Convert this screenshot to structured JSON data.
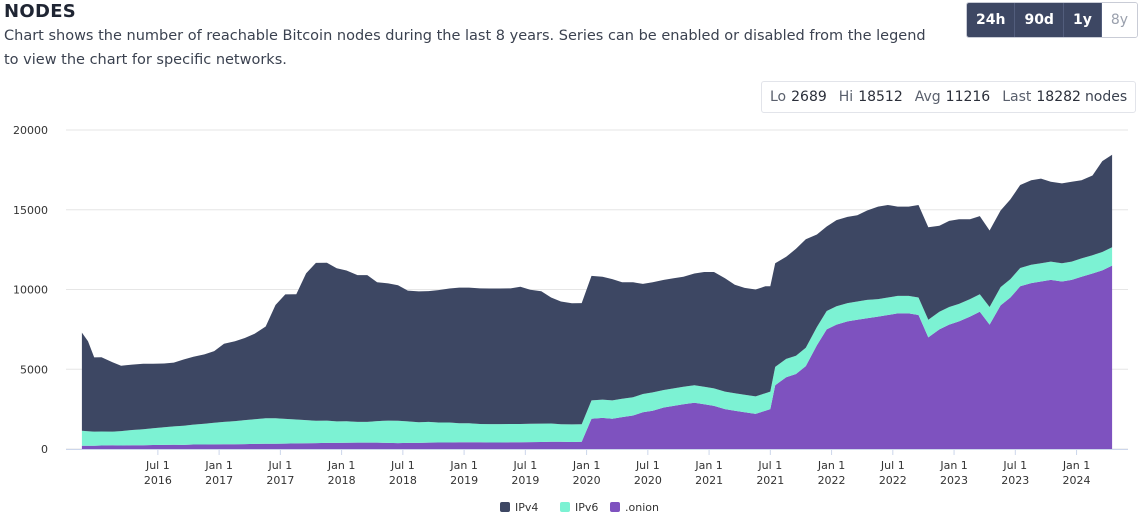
{
  "header": {
    "title": "NODES",
    "subtitle": "Chart shows the number of reachable Bitcoin nodes during the last 8 years. Series can be enabled or disabled from the legend to view the chart for specific networks."
  },
  "range_buttons": [
    {
      "label": "24h",
      "active": false
    },
    {
      "label": "90d",
      "active": false
    },
    {
      "label": "1y",
      "active": false
    },
    {
      "label": "8y",
      "active": true
    }
  ],
  "stats": {
    "lo_label": "Lo",
    "lo_value": "2689",
    "hi_label": "Hi",
    "hi_value": "18512",
    "avg_label": "Avg",
    "avg_value": "11216",
    "last_label": "Last",
    "last_value": "18282",
    "unit": "nodes"
  },
  "colors": {
    "ipv4": "#3d4763",
    "ipv6": "#7cf2d3",
    "onion": "#7e52bf",
    "grid": "#e6e6e6",
    "axis_text": "#333333"
  },
  "chart_data": {
    "type": "area",
    "stacked": true,
    "title": "NODES",
    "xlabel": "",
    "ylabel": "",
    "ylim": [
      0,
      20000
    ],
    "y_ticks": [
      "0",
      "5000",
      "10000",
      "15000",
      "20000"
    ],
    "x_ticks": [
      {
        "date": 2016.5,
        "line1": "Jul 1",
        "line2": "2016"
      },
      {
        "date": 2017.0,
        "line1": "Jan 1",
        "line2": "2017"
      },
      {
        "date": 2017.5,
        "line1": "Jul 1",
        "line2": "2017"
      },
      {
        "date": 2018.0,
        "line1": "Jan 1",
        "line2": "2018"
      },
      {
        "date": 2018.5,
        "line1": "Jul 1",
        "line2": "2018"
      },
      {
        "date": 2019.0,
        "line1": "Jan 1",
        "line2": "2019"
      },
      {
        "date": 2019.5,
        "line1": "Jul 1",
        "line2": "2019"
      },
      {
        "date": 2020.0,
        "line1": "Jan 1",
        "line2": "2020"
      },
      {
        "date": 2020.5,
        "line1": "Jul 1",
        "line2": "2020"
      },
      {
        "date": 2021.0,
        "line1": "Jan 1",
        "line2": "2021"
      },
      {
        "date": 2021.5,
        "line1": "Jul 1",
        "line2": "2021"
      },
      {
        "date": 2022.0,
        "line1": "Jan 1",
        "line2": "2022"
      },
      {
        "date": 2022.5,
        "line1": "Jul 1",
        "line2": "2022"
      },
      {
        "date": 2023.0,
        "line1": "Jan 1",
        "line2": "2023"
      },
      {
        "date": 2023.5,
        "line1": "Jul 1",
        "line2": "2023"
      },
      {
        "date": 2024.0,
        "line1": "Jan 1",
        "line2": "2024"
      }
    ],
    "legend": [
      "IPv4",
      "IPv6",
      ".onion"
    ],
    "legend_position": "bottom-center",
    "x": [
      2015.88,
      2015.93,
      2015.98,
      2016.04,
      2016.13,
      2016.2,
      2016.29,
      2016.38,
      2016.46,
      2016.55,
      2016.63,
      2016.71,
      2016.79,
      2016.88,
      2016.96,
      2017.04,
      2017.13,
      2017.21,
      2017.29,
      2017.38,
      2017.46,
      2017.54,
      2017.63,
      2017.71,
      2017.79,
      2017.88,
      2017.96,
      2018.04,
      2018.13,
      2018.21,
      2018.29,
      2018.38,
      2018.46,
      2018.54,
      2018.63,
      2018.71,
      2018.79,
      2018.88,
      2018.96,
      2019.04,
      2019.13,
      2019.21,
      2019.29,
      2019.38,
      2019.46,
      2019.54,
      2019.63,
      2019.71,
      2019.79,
      2019.88,
      2019.96,
      2020.04,
      2020.13,
      2020.21,
      2020.29,
      2020.38,
      2020.46,
      2020.54,
      2020.63,
      2020.71,
      2020.79,
      2020.88,
      2020.96,
      2021.04,
      2021.13,
      2021.21,
      2021.29,
      2021.38,
      2021.46,
      2021.5,
      2021.54,
      2021.63,
      2021.71,
      2021.79,
      2021.88,
      2021.96,
      2022.04,
      2022.13,
      2022.21,
      2022.29,
      2022.38,
      2022.46,
      2022.54,
      2022.63,
      2022.71,
      2022.79,
      2022.88,
      2022.96,
      2023.04,
      2023.13,
      2023.21,
      2023.29,
      2023.38,
      2023.46,
      2023.54,
      2023.63,
      2023.71,
      2023.79,
      2023.88,
      2023.96,
      2024.04,
      2024.13,
      2024.21,
      2024.29
    ],
    "series": [
      {
        "name": ".onion",
        "values": [
          200,
          210,
          210,
          220,
          230,
          220,
          240,
          240,
          250,
          260,
          270,
          260,
          280,
          280,
          290,
          300,
          300,
          310,
          320,
          330,
          330,
          340,
          350,
          360,
          370,
          380,
          380,
          390,
          400,
          400,
          400,
          380,
          370,
          380,
          380,
          400,
          410,
          410,
          420,
          420,
          420,
          410,
          410,
          420,
          420,
          430,
          440,
          450,
          450,
          440,
          450,
          1900,
          1950,
          1900,
          2000,
          2100,
          2300,
          2400,
          2600,
          2700,
          2800,
          2900,
          2800,
          2700,
          2500,
          2400,
          2300,
          2200,
          2400,
          2500,
          4000,
          4500,
          4700,
          5200,
          6500,
          7500,
          7800,
          8000,
          8100,
          8200,
          8300,
          8400,
          8500,
          8500,
          8400,
          7000,
          7500,
          7800,
          8000,
          8300,
          8600,
          7800,
          9000,
          9500,
          10200,
          10400,
          10500,
          10600,
          10500,
          10600,
          10800,
          11000,
          11200,
          11500
        ]
      },
      {
        "name": "IPv6",
        "values": [
          950,
          900,
          880,
          880,
          860,
          900,
          950,
          1000,
          1050,
          1100,
          1150,
          1200,
          1250,
          1300,
          1350,
          1400,
          1450,
          1500,
          1550,
          1600,
          1600,
          1550,
          1500,
          1450,
          1400,
          1400,
          1350,
          1350,
          1300,
          1300,
          1350,
          1400,
          1400,
          1350,
          1300,
          1300,
          1250,
          1250,
          1200,
          1200,
          1150,
          1150,
          1150,
          1150,
          1150,
          1150,
          1150,
          1150,
          1100,
          1100,
          1100,
          1150,
          1150,
          1150,
          1150,
          1150,
          1150,
          1150,
          1100,
          1100,
          1100,
          1100,
          1100,
          1100,
          1100,
          1100,
          1100,
          1100,
          1100,
          1100,
          1150,
          1150,
          1150,
          1150,
          1150,
          1150,
          1150,
          1150,
          1150,
          1150,
          1100,
          1100,
          1100,
          1100,
          1100,
          1100,
          1100,
          1100,
          1100,
          1100,
          1100,
          1100,
          1150,
          1150,
          1150,
          1150,
          1150,
          1150,
          1150,
          1150,
          1150,
          1150,
          1150,
          1150
        ]
      },
      {
        "name": "IPv4",
        "values": [
          6150,
          5650,
          4650,
          4650,
          4350,
          4100,
          4100,
          4100,
          4050,
          4000,
          4000,
          4150,
          4250,
          4350,
          4500,
          4900,
          5000,
          5150,
          5350,
          5750,
          7100,
          7800,
          7850,
          9200,
          9900,
          9900,
          9600,
          9450,
          9200,
          9200,
          8700,
          8600,
          8500,
          8200,
          8200,
          8200,
          8300,
          8400,
          8500,
          8500,
          8500,
          8500,
          8500,
          8500,
          8600,
          8400,
          8300,
          7900,
          7700,
          7600,
          7600,
          7800,
          7700,
          7600,
          7300,
          7200,
          6900,
          6900,
          6900,
          6900,
          6900,
          7000,
          7200,
          7300,
          7100,
          6800,
          6700,
          6700,
          6700,
          6600,
          6500,
          6400,
          6700,
          6800,
          5800,
          5300,
          5400,
          5400,
          5400,
          5600,
          5800,
          5800,
          5600,
          5600,
          5800,
          5800,
          5400,
          5400,
          5300,
          5000,
          4900,
          4800,
          4800,
          5000,
          5200,
          5300,
          5300,
          5000,
          5000,
          5000,
          4900,
          5000,
          5700,
          5800
        ]
      }
    ]
  }
}
